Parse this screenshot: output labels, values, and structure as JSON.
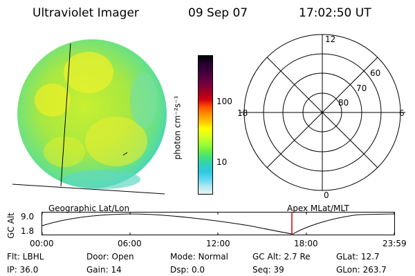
{
  "header": {
    "instrument": "Ultraviolet Imager",
    "date": "09 Sep 07",
    "time": "17:02:50 UT"
  },
  "colorbar": {
    "unit_label": "photon cm⁻²s⁻¹",
    "tick_100": "100",
    "tick_10": "10",
    "colors": [
      "#000000",
      "#240030",
      "#3a003a",
      "#5a0040",
      "#7a0040",
      "#a00020",
      "#d00010",
      "#ff5000",
      "#ff9000",
      "#ffc000",
      "#ffff00",
      "#d8ff20",
      "#a8ff30",
      "#70f040",
      "#40e080",
      "#30d0c0",
      "#30c8e0",
      "#60d8f0",
      "#b0e8f0",
      "#e8f4f4"
    ]
  },
  "polar": {
    "label_top": "12",
    "label_left": "18",
    "label_right": "6",
    "label_bottom": "0",
    "lat_60": "60",
    "lat_70": "70",
    "lat_80": "80"
  },
  "timeline": {
    "left_label": "Geographic Lat/Lon",
    "right_label": "Apex MLat/MLT",
    "axis_title": "GC Alt",
    "ymax": "9.0",
    "ymin": "1.8",
    "ticks": [
      "00:00",
      "06:00",
      "12:00",
      "18:00",
      "23:59"
    ],
    "marker_color": "#cc0000"
  },
  "info": {
    "flt": "Flt: LBHL",
    "ip": "IP: 36.0",
    "door": "Door: Open",
    "gain": "Gain: 14",
    "mode": "Mode: Normal",
    "dsp": "Dsp:     0.0",
    "gcalt": "GC Alt: 2.7 Re",
    "seq": "Seq: 39",
    "glat": "GLat:  12.7",
    "glon": "GLon: 263.7"
  }
}
